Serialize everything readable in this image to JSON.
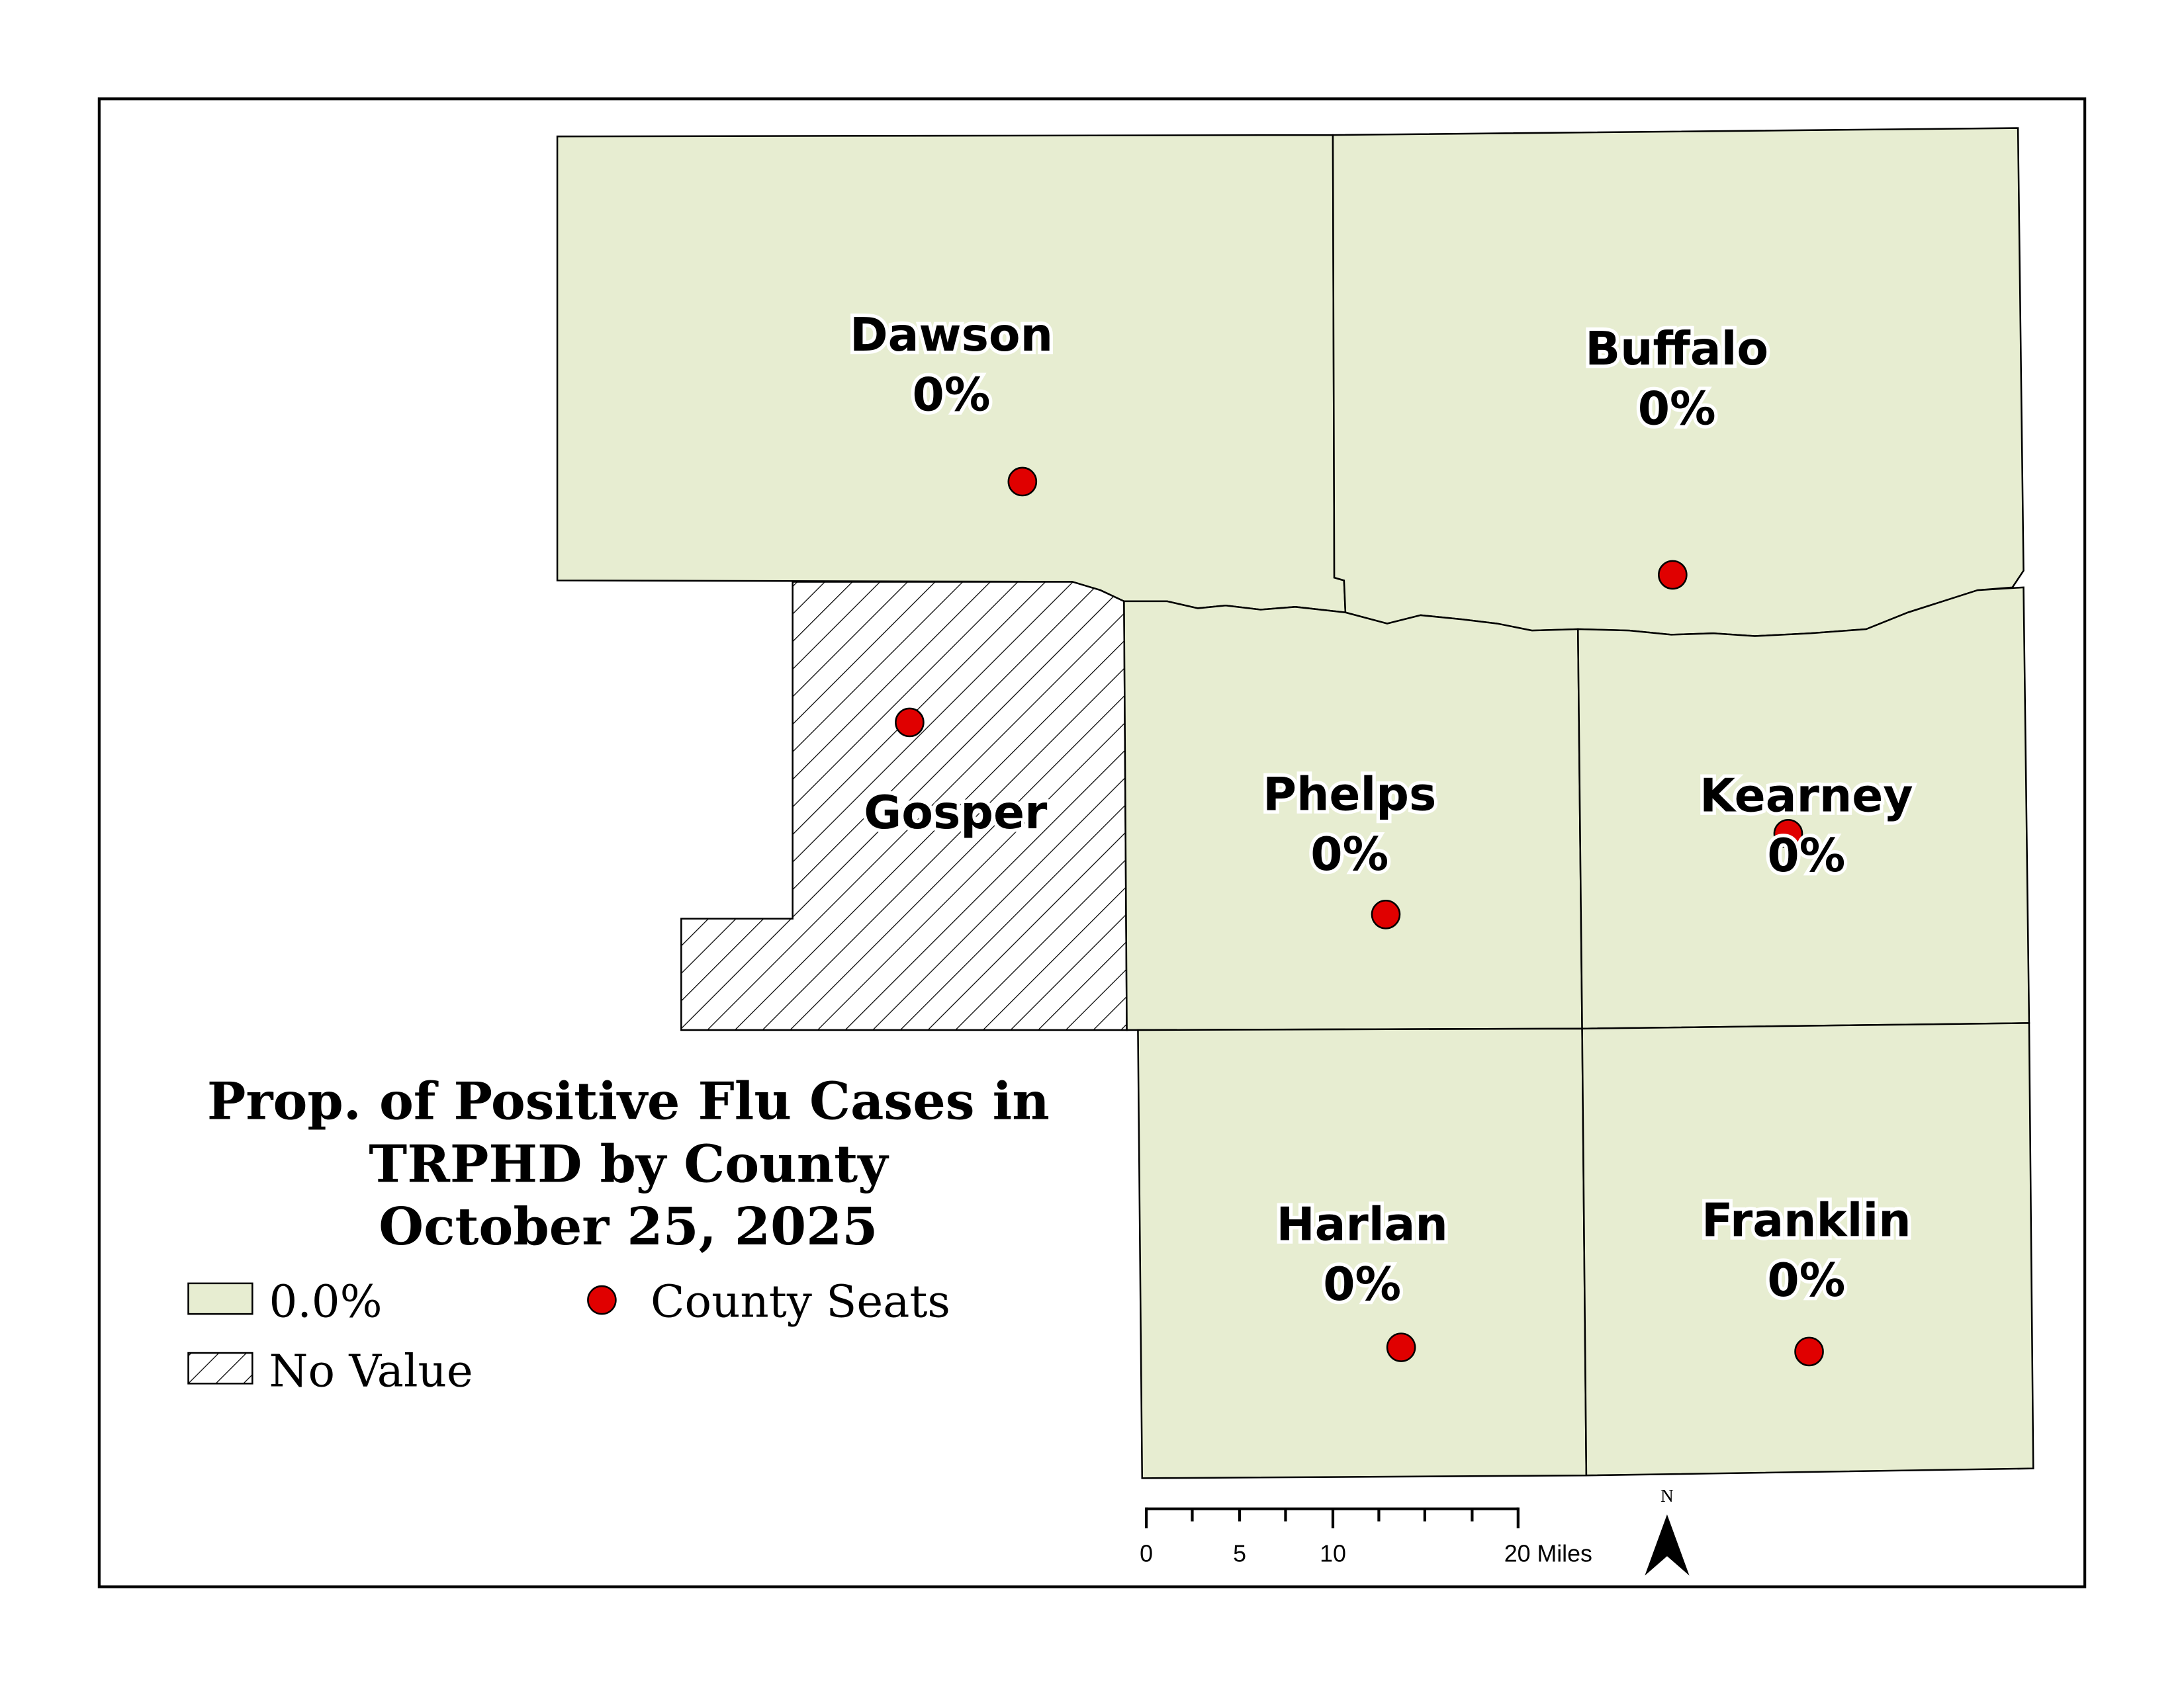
{
  "title": {
    "line1": "Prop. of Positive Flu Cases in",
    "line2": "TRPHD by County",
    "line3": "October 25, 2025"
  },
  "colors": {
    "fill_zero": "#e7edd1",
    "county_seat": "#e00000",
    "outline": "#000000"
  },
  "counties": [
    {
      "name": "Dawson",
      "value": "0%",
      "category": "0.0%"
    },
    {
      "name": "Buffalo",
      "value": "0%",
      "category": "0.0%"
    },
    {
      "name": "Gosper",
      "value": "",
      "category": "No Value"
    },
    {
      "name": "Phelps",
      "value": "0%",
      "category": "0.0%"
    },
    {
      "name": "Kearney",
      "value": "0%",
      "category": "0.0%"
    },
    {
      "name": "Harlan",
      "value": "0%",
      "category": "0.0%"
    },
    {
      "name": "Franklin",
      "value": "0%",
      "category": "0.0%"
    }
  ],
  "legend": {
    "zero_label": "0.0%",
    "novalue_label": "No Value",
    "seats_label": "County Seats"
  },
  "scale_bar": {
    "ticks": [
      "0",
      "5",
      "10",
      "20 Miles"
    ]
  },
  "north_arrow": {
    "label": "N"
  }
}
